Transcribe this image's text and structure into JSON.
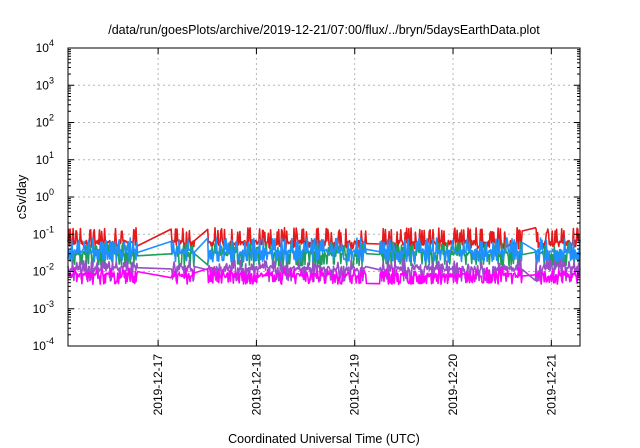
{
  "chart_data": {
    "type": "line",
    "title": "/data/run/goesPlots/archive/2019-12-21/07:00/flux/../bryn/5daysEarthData.plot",
    "xlabel": "Coordinated Universal Time (UTC)",
    "ylabel": "cSv/day",
    "y_scale": "log",
    "ylim_exponents": [
      -4,
      4
    ],
    "y_tick_base": "10",
    "y_tick_exponents": [
      "-4",
      "-3",
      "-2",
      "-1",
      "0",
      "1",
      "2",
      "3",
      "4"
    ],
    "x_range_days": [
      "2019-12-16 02:00",
      "2019-12-21 07:00"
    ],
    "x_ticks": [
      "2019-12-17",
      "2019-12-18",
      "2019-12-19",
      "2019-12-20",
      "2019-12-21"
    ],
    "grid": true,
    "legend": "none",
    "gaps": [
      [
        "2019-12-16 19:00",
        "2019-12-17 03:00"
      ],
      [
        "2019-12-17 09:00",
        "2019-12-17 12:00"
      ],
      [
        "2019-12-19 03:00",
        "2019-12-19 06:00"
      ],
      [
        "2019-12-20 17:00",
        "2019-12-20 20:00"
      ]
    ],
    "series": [
      {
        "color": "#e41a1c",
        "base": 0.06,
        "spread": [
          0.045,
          0.15
        ]
      },
      {
        "color": "#1f9e5a",
        "base": 0.03,
        "spread": [
          0.015,
          0.06
        ]
      },
      {
        "color": "#1e90ff",
        "base": 0.035,
        "spread": [
          0.02,
          0.08
        ]
      },
      {
        "color": "#9a4ec8",
        "base": 0.012,
        "spread": [
          0.006,
          0.02
        ]
      },
      {
        "color": "#ff00ff",
        "base": 0.008,
        "spread": [
          0.005,
          0.012
        ]
      }
    ]
  }
}
